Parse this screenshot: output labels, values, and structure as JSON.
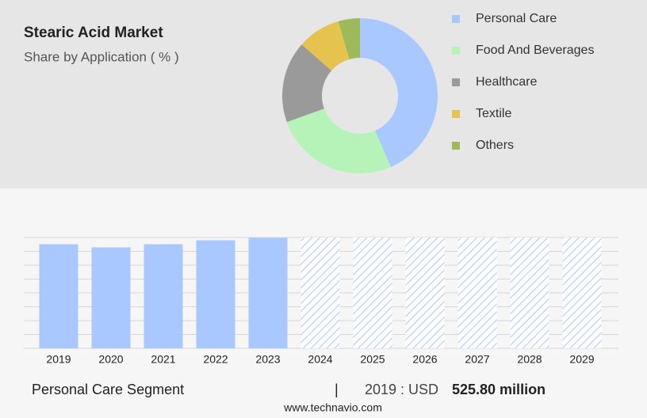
{
  "chart_data": [
    {
      "type": "pie",
      "title": "Stearic Acid Market",
      "subtitle": "Share by Application ( % )",
      "categories": [
        "Personal Care",
        "Food And Beverages",
        "Healthcare",
        "Textile",
        "Others"
      ],
      "values": [
        43.5,
        26,
        17,
        9,
        4.5
      ],
      "colors": [
        "#a8c8ff",
        "#b6f3b9",
        "#9a9a9a",
        "#e6c24f",
        "#9cba5a"
      ],
      "donut": true,
      "legend": "right"
    },
    {
      "type": "bar",
      "categories": [
        "2019",
        "2020",
        "2021",
        "2022",
        "2023",
        "2024",
        "2025",
        "2026",
        "2027",
        "2028",
        "2029"
      ],
      "values": [
        525.8,
        510,
        526,
        546,
        558,
        null,
        null,
        null,
        null,
        null,
        null
      ],
      "color": "#a8c8ff",
      "ylim": [
        0,
        560
      ]
    }
  ],
  "footer": {
    "segment": "Personal Care Segment",
    "separator": "|",
    "year_label": "2019 : USD",
    "value_label": "525.80 million",
    "source": "www.technavio.com"
  }
}
